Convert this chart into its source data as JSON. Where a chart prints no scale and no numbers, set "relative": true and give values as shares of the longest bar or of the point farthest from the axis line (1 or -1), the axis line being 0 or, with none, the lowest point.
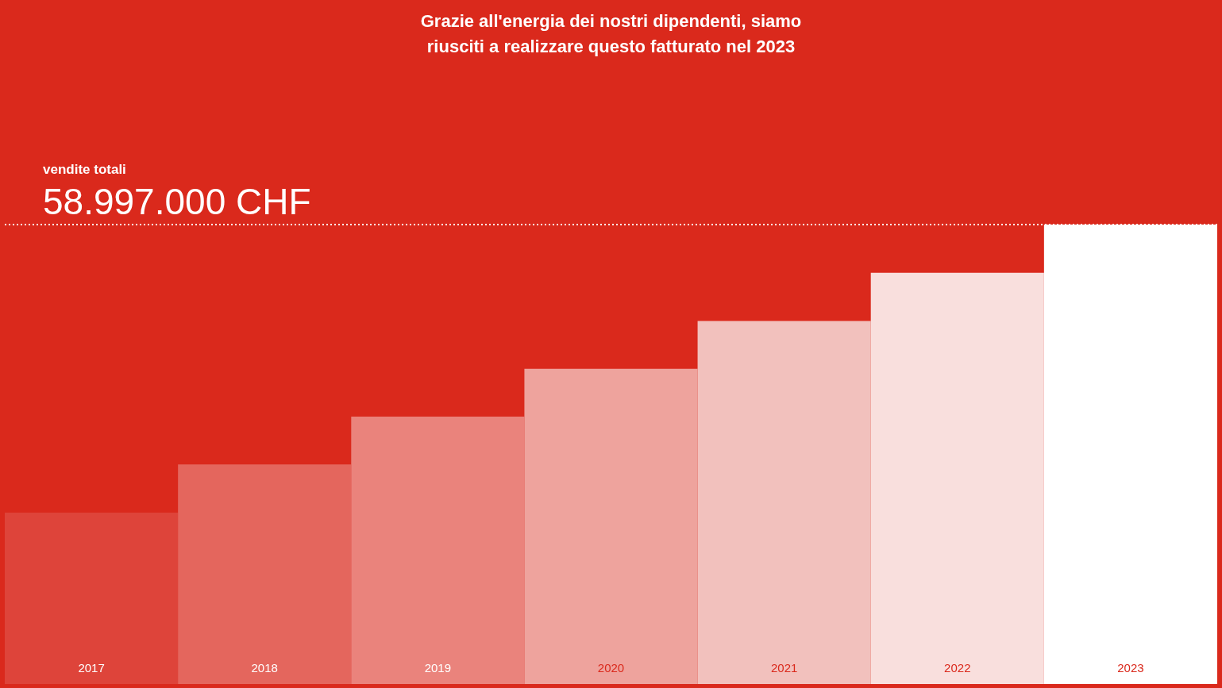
{
  "chart_data": {
    "type": "bar",
    "relative": true,
    "title": "Grazie all'energia dei nostri dipendenti, siamo\nriusciti a realizzare questo fatturato nel 2023",
    "categories": [
      "2017",
      "2018",
      "2019",
      "2020",
      "2021",
      "2022",
      "2023"
    ],
    "values": [
      0.373,
      0.478,
      0.582,
      0.686,
      0.79,
      0.895,
      1
    ],
    "colors": [
      "#de443a",
      "#e4665d",
      "#ea837c",
      "#eea39d",
      "#f2c1bd",
      "#f9dfdd",
      "#ffffff"
    ],
    "ref_lines": [
      {
        "axis": "y",
        "value": 1,
        "label": "58.997.000 CHF",
        "color": "#ffffff",
        "line_style": "dotted"
      }
    ],
    "annotations": [
      "vendite totali"
    ],
    "legend": false
  }
}
